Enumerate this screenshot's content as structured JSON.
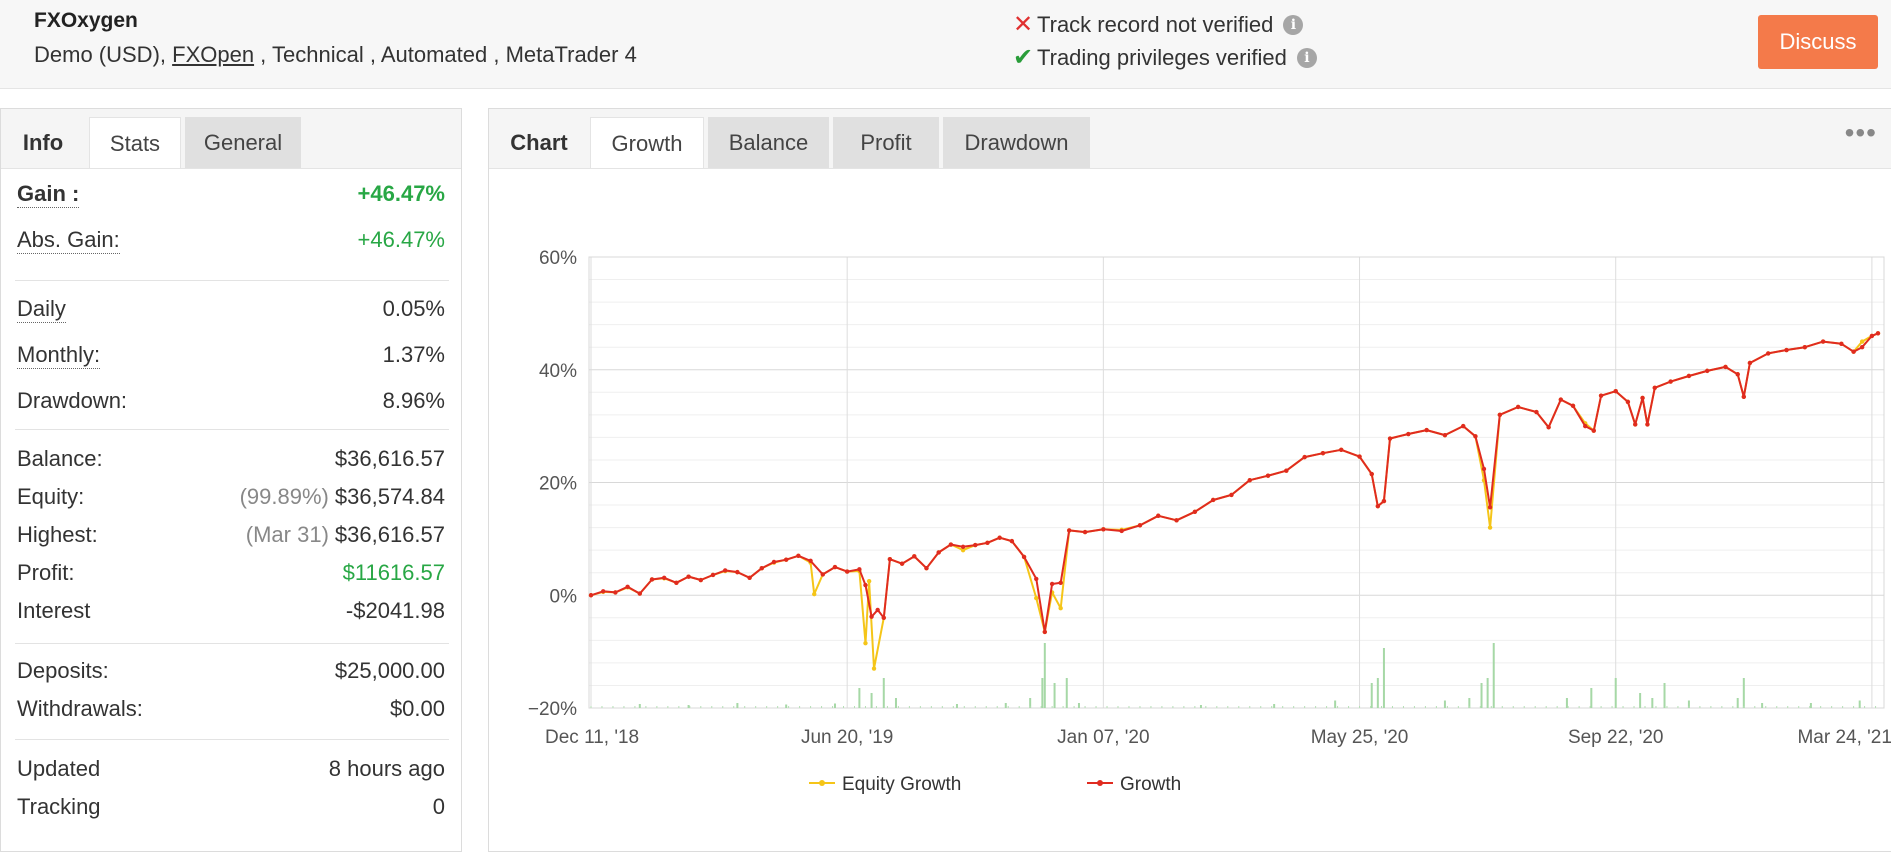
{
  "header": {
    "account_name": "FXOxygen",
    "meta_prefix": "Demo (USD), ",
    "broker_link": "FXOpen",
    "meta_suffix": " , Technical , Automated , MetaTrader 4",
    "track_record": "Track record not verified",
    "trading_privileges": "Trading privileges verified",
    "discuss_label": "Discuss",
    "colors": {
      "discuss": "#f47a4a",
      "not_verified": "#e03030",
      "verified": "#2a9d3a"
    }
  },
  "left_tabs": [
    "Info",
    "Stats",
    "General"
  ],
  "stats": {
    "gain": {
      "label": "Gain :",
      "value": "+46.47%"
    },
    "abs_gain": {
      "label": "Abs. Gain:",
      "value": "+46.47%"
    },
    "daily": {
      "label": "Daily",
      "value": "0.05%"
    },
    "monthly": {
      "label": "Monthly:",
      "value": "1.37%"
    },
    "drawdown": {
      "label": "Drawdown:",
      "value": "8.96%"
    },
    "balance": {
      "label": "Balance:",
      "value": "$36,616.57"
    },
    "equity": {
      "label": "Equity:",
      "note": "(99.89%)",
      "value": "$36,574.84"
    },
    "highest": {
      "label": "Highest:",
      "note": "(Mar 31)",
      "value": "$36,616.57"
    },
    "profit": {
      "label": "Profit:",
      "value": "$11616.57"
    },
    "interest": {
      "label": "Interest",
      "value": "-$2041.98"
    },
    "deposits": {
      "label": "Deposits:",
      "value": "$25,000.00"
    },
    "withdrawals": {
      "label": "Withdrawals:",
      "value": "$0.00"
    },
    "updated": {
      "label": "Updated",
      "value": "8 hours ago"
    },
    "tracking": {
      "label": "Tracking",
      "value": "0"
    }
  },
  "chart_tabs": [
    "Chart",
    "Growth",
    "Balance",
    "Profit",
    "Drawdown"
  ],
  "menu_icon": "more-dots-icon",
  "chart_data": {
    "type": "line",
    "ylim": [
      -20,
      60
    ],
    "yticks": [
      "60%",
      "40%",
      "20%",
      "0%",
      "−20%"
    ],
    "xticks": [
      "Dec 11, '18",
      "Jun 20, '19",
      "Jan 07, '20",
      "May 25, '20",
      "Sep 22, '20",
      "Mar 24, '21"
    ],
    "grid": true,
    "legend_position": "bottom",
    "series": [
      {
        "name": "Equity Growth",
        "color": "#f5c518"
      },
      {
        "name": "Growth",
        "color": "#e02b20"
      }
    ],
    "growth_points": [
      [
        0,
        0
      ],
      [
        10,
        0.7
      ],
      [
        20,
        0.5
      ],
      [
        30,
        1.5
      ],
      [
        40,
        0.3
      ],
      [
        50,
        2.8
      ],
      [
        60,
        3.1
      ],
      [
        70,
        2.2
      ],
      [
        80,
        3.3
      ],
      [
        90,
        2.7
      ],
      [
        100,
        3.6
      ],
      [
        110,
        4.4
      ],
      [
        120,
        4.1
      ],
      [
        130,
        3.1
      ],
      [
        140,
        4.8
      ],
      [
        150,
        5.9
      ],
      [
        160,
        6.3
      ],
      [
        170,
        7.0
      ],
      [
        180,
        6.1
      ],
      [
        190,
        3.7
      ],
      [
        200,
        5.0
      ],
      [
        210,
        4.2
      ],
      [
        220,
        4.6
      ],
      [
        225,
        1.8
      ],
      [
        230,
        -3.8
      ],
      [
        235,
        -2.6
      ],
      [
        240,
        -4.0
      ],
      [
        245,
        6.4
      ],
      [
        255,
        5.6
      ],
      [
        265,
        6.9
      ],
      [
        275,
        4.8
      ],
      [
        285,
        7.6
      ],
      [
        295,
        9.0
      ],
      [
        305,
        8.6
      ],
      [
        315,
        8.9
      ],
      [
        325,
        9.3
      ],
      [
        335,
        10.2
      ],
      [
        345,
        9.6
      ],
      [
        355,
        6.8
      ],
      [
        365,
        2.9
      ],
      [
        372,
        -6.5
      ],
      [
        378,
        2.0
      ],
      [
        385,
        2.2
      ],
      [
        392,
        11.5
      ],
      [
        405,
        11.2
      ],
      [
        420,
        11.7
      ],
      [
        435,
        11.4
      ],
      [
        450,
        12.4
      ],
      [
        465,
        14.1
      ],
      [
        480,
        13.3
      ],
      [
        495,
        14.8
      ],
      [
        510,
        16.9
      ],
      [
        525,
        17.8
      ],
      [
        540,
        20.4
      ],
      [
        555,
        21.2
      ],
      [
        570,
        22.1
      ],
      [
        585,
        24.5
      ],
      [
        600,
        25.2
      ],
      [
        615,
        25.8
      ],
      [
        630,
        24.6
      ],
      [
        640,
        21.5
      ],
      [
        645,
        15.8
      ],
      [
        650,
        16.7
      ],
      [
        655,
        27.8
      ],
      [
        670,
        28.6
      ],
      [
        685,
        29.3
      ],
      [
        700,
        28.4
      ],
      [
        715,
        30.0
      ],
      [
        725,
        28.2
      ],
      [
        732,
        22.4
      ],
      [
        737,
        15.6
      ],
      [
        745,
        32.0
      ],
      [
        760,
        33.4
      ],
      [
        775,
        32.5
      ],
      [
        785,
        29.8
      ],
      [
        795,
        34.7
      ],
      [
        805,
        33.6
      ],
      [
        815,
        30.0
      ],
      [
        822,
        29.2
      ],
      [
        828,
        35.4
      ],
      [
        840,
        36.2
      ],
      [
        850,
        34.3
      ],
      [
        856,
        30.3
      ],
      [
        862,
        35.0
      ],
      [
        866,
        30.3
      ],
      [
        872,
        36.8
      ],
      [
        885,
        37.9
      ],
      [
        900,
        38.9
      ],
      [
        915,
        39.8
      ],
      [
        930,
        40.5
      ],
      [
        940,
        39.2
      ],
      [
        945,
        35.2
      ],
      [
        950,
        41.2
      ],
      [
        965,
        42.9
      ],
      [
        980,
        43.5
      ],
      [
        995,
        44.0
      ],
      [
        1010,
        45.0
      ],
      [
        1025,
        44.6
      ],
      [
        1035,
        43.2
      ],
      [
        1042,
        44.0
      ],
      [
        1050,
        46.0
      ],
      [
        1055,
        46.47
      ]
    ],
    "equity_points": [
      [
        0,
        0
      ],
      [
        10,
        0.6
      ],
      [
        20,
        0.5
      ],
      [
        30,
        1.4
      ],
      [
        40,
        0.3
      ],
      [
        50,
        2.8
      ],
      [
        60,
        3.0
      ],
      [
        70,
        2.2
      ],
      [
        80,
        3.3
      ],
      [
        90,
        2.7
      ],
      [
        100,
        3.6
      ],
      [
        110,
        4.3
      ],
      [
        120,
        4.1
      ],
      [
        130,
        3.1
      ],
      [
        140,
        4.8
      ],
      [
        150,
        5.8
      ],
      [
        160,
        6.3
      ],
      [
        170,
        7.0
      ],
      [
        180,
        5.8
      ],
      [
        183,
        0.2
      ],
      [
        190,
        3.7
      ],
      [
        200,
        5.0
      ],
      [
        210,
        4.2
      ],
      [
        220,
        4.3
      ],
      [
        225,
        -8.5
      ],
      [
        228,
        2.5
      ],
      [
        232,
        -13.0
      ],
      [
        240,
        -4.0
      ],
      [
        245,
        6.4
      ],
      [
        255,
        5.6
      ],
      [
        265,
        6.9
      ],
      [
        275,
        4.8
      ],
      [
        285,
        7.6
      ],
      [
        295,
        9.0
      ],
      [
        305,
        8.0
      ],
      [
        315,
        8.9
      ],
      [
        325,
        9.3
      ],
      [
        335,
        10.2
      ],
      [
        345,
        9.6
      ],
      [
        355,
        6.8
      ],
      [
        365,
        -0.5
      ],
      [
        372,
        -6.5
      ],
      [
        378,
        0.5
      ],
      [
        385,
        -2.3
      ],
      [
        392,
        11.5
      ],
      [
        405,
        11.2
      ],
      [
        420,
        11.7
      ],
      [
        435,
        11.6
      ],
      [
        450,
        12.4
      ],
      [
        465,
        14.1
      ],
      [
        480,
        13.3
      ],
      [
        495,
        14.8
      ],
      [
        510,
        16.9
      ],
      [
        525,
        17.8
      ],
      [
        540,
        20.4
      ],
      [
        555,
        21.2
      ],
      [
        570,
        22.1
      ],
      [
        585,
        24.5
      ],
      [
        600,
        25.2
      ],
      [
        615,
        25.8
      ],
      [
        630,
        24.6
      ],
      [
        640,
        21.5
      ],
      [
        645,
        15.8
      ],
      [
        650,
        16.7
      ],
      [
        655,
        27.8
      ],
      [
        670,
        28.6
      ],
      [
        685,
        29.3
      ],
      [
        700,
        28.4
      ],
      [
        715,
        30.0
      ],
      [
        725,
        28.2
      ],
      [
        732,
        20.4
      ],
      [
        737,
        12.0
      ],
      [
        745,
        32.0
      ],
      [
        760,
        33.4
      ],
      [
        775,
        32.5
      ],
      [
        785,
        29.8
      ],
      [
        795,
        34.7
      ],
      [
        805,
        33.6
      ],
      [
        815,
        30.5
      ],
      [
        822,
        29.2
      ],
      [
        828,
        35.4
      ],
      [
        840,
        36.2
      ],
      [
        850,
        34.3
      ],
      [
        856,
        30.3
      ],
      [
        862,
        35.0
      ],
      [
        866,
        30.3
      ],
      [
        872,
        36.8
      ],
      [
        885,
        37.9
      ],
      [
        900,
        38.9
      ],
      [
        915,
        39.8
      ],
      [
        930,
        40.5
      ],
      [
        940,
        39.2
      ],
      [
        945,
        35.2
      ],
      [
        950,
        41.2
      ],
      [
        965,
        42.9
      ],
      [
        980,
        43.5
      ],
      [
        995,
        44.0
      ],
      [
        1010,
        45.0
      ],
      [
        1025,
        44.6
      ],
      [
        1035,
        43.2
      ],
      [
        1042,
        45.0
      ],
      [
        1050,
        46.0
      ],
      [
        1055,
        46.47
      ]
    ],
    "volume_bars": [
      [
        40,
        0.8
      ],
      [
        80,
        0.6
      ],
      [
        120,
        1.0
      ],
      [
        160,
        0.7
      ],
      [
        200,
        0.9
      ],
      [
        220,
        4.0
      ],
      [
        230,
        3.0
      ],
      [
        240,
        6.0
      ],
      [
        250,
        2.0
      ],
      [
        300,
        0.8
      ],
      [
        340,
        1.0
      ],
      [
        360,
        2.0
      ],
      [
        370,
        6.0
      ],
      [
        372,
        13.0
      ],
      [
        380,
        5.0
      ],
      [
        390,
        6.0
      ],
      [
        400,
        1.0
      ],
      [
        500,
        0.6
      ],
      [
        560,
        0.8
      ],
      [
        610,
        1.5
      ],
      [
        640,
        5.0
      ],
      [
        645,
        6.0
      ],
      [
        650,
        12.0
      ],
      [
        700,
        1.5
      ],
      [
        720,
        2.0
      ],
      [
        730,
        5.0
      ],
      [
        735,
        6.0
      ],
      [
        740,
        13.0
      ],
      [
        800,
        2.0
      ],
      [
        820,
        4.0
      ],
      [
        840,
        6.0
      ],
      [
        860,
        3.0
      ],
      [
        870,
        2.0
      ],
      [
        880,
        5.0
      ],
      [
        900,
        1.5
      ],
      [
        940,
        2.0
      ],
      [
        945,
        6.0
      ],
      [
        960,
        1.0
      ],
      [
        1000,
        1.0
      ],
      [
        1040,
        1.5
      ]
    ]
  }
}
